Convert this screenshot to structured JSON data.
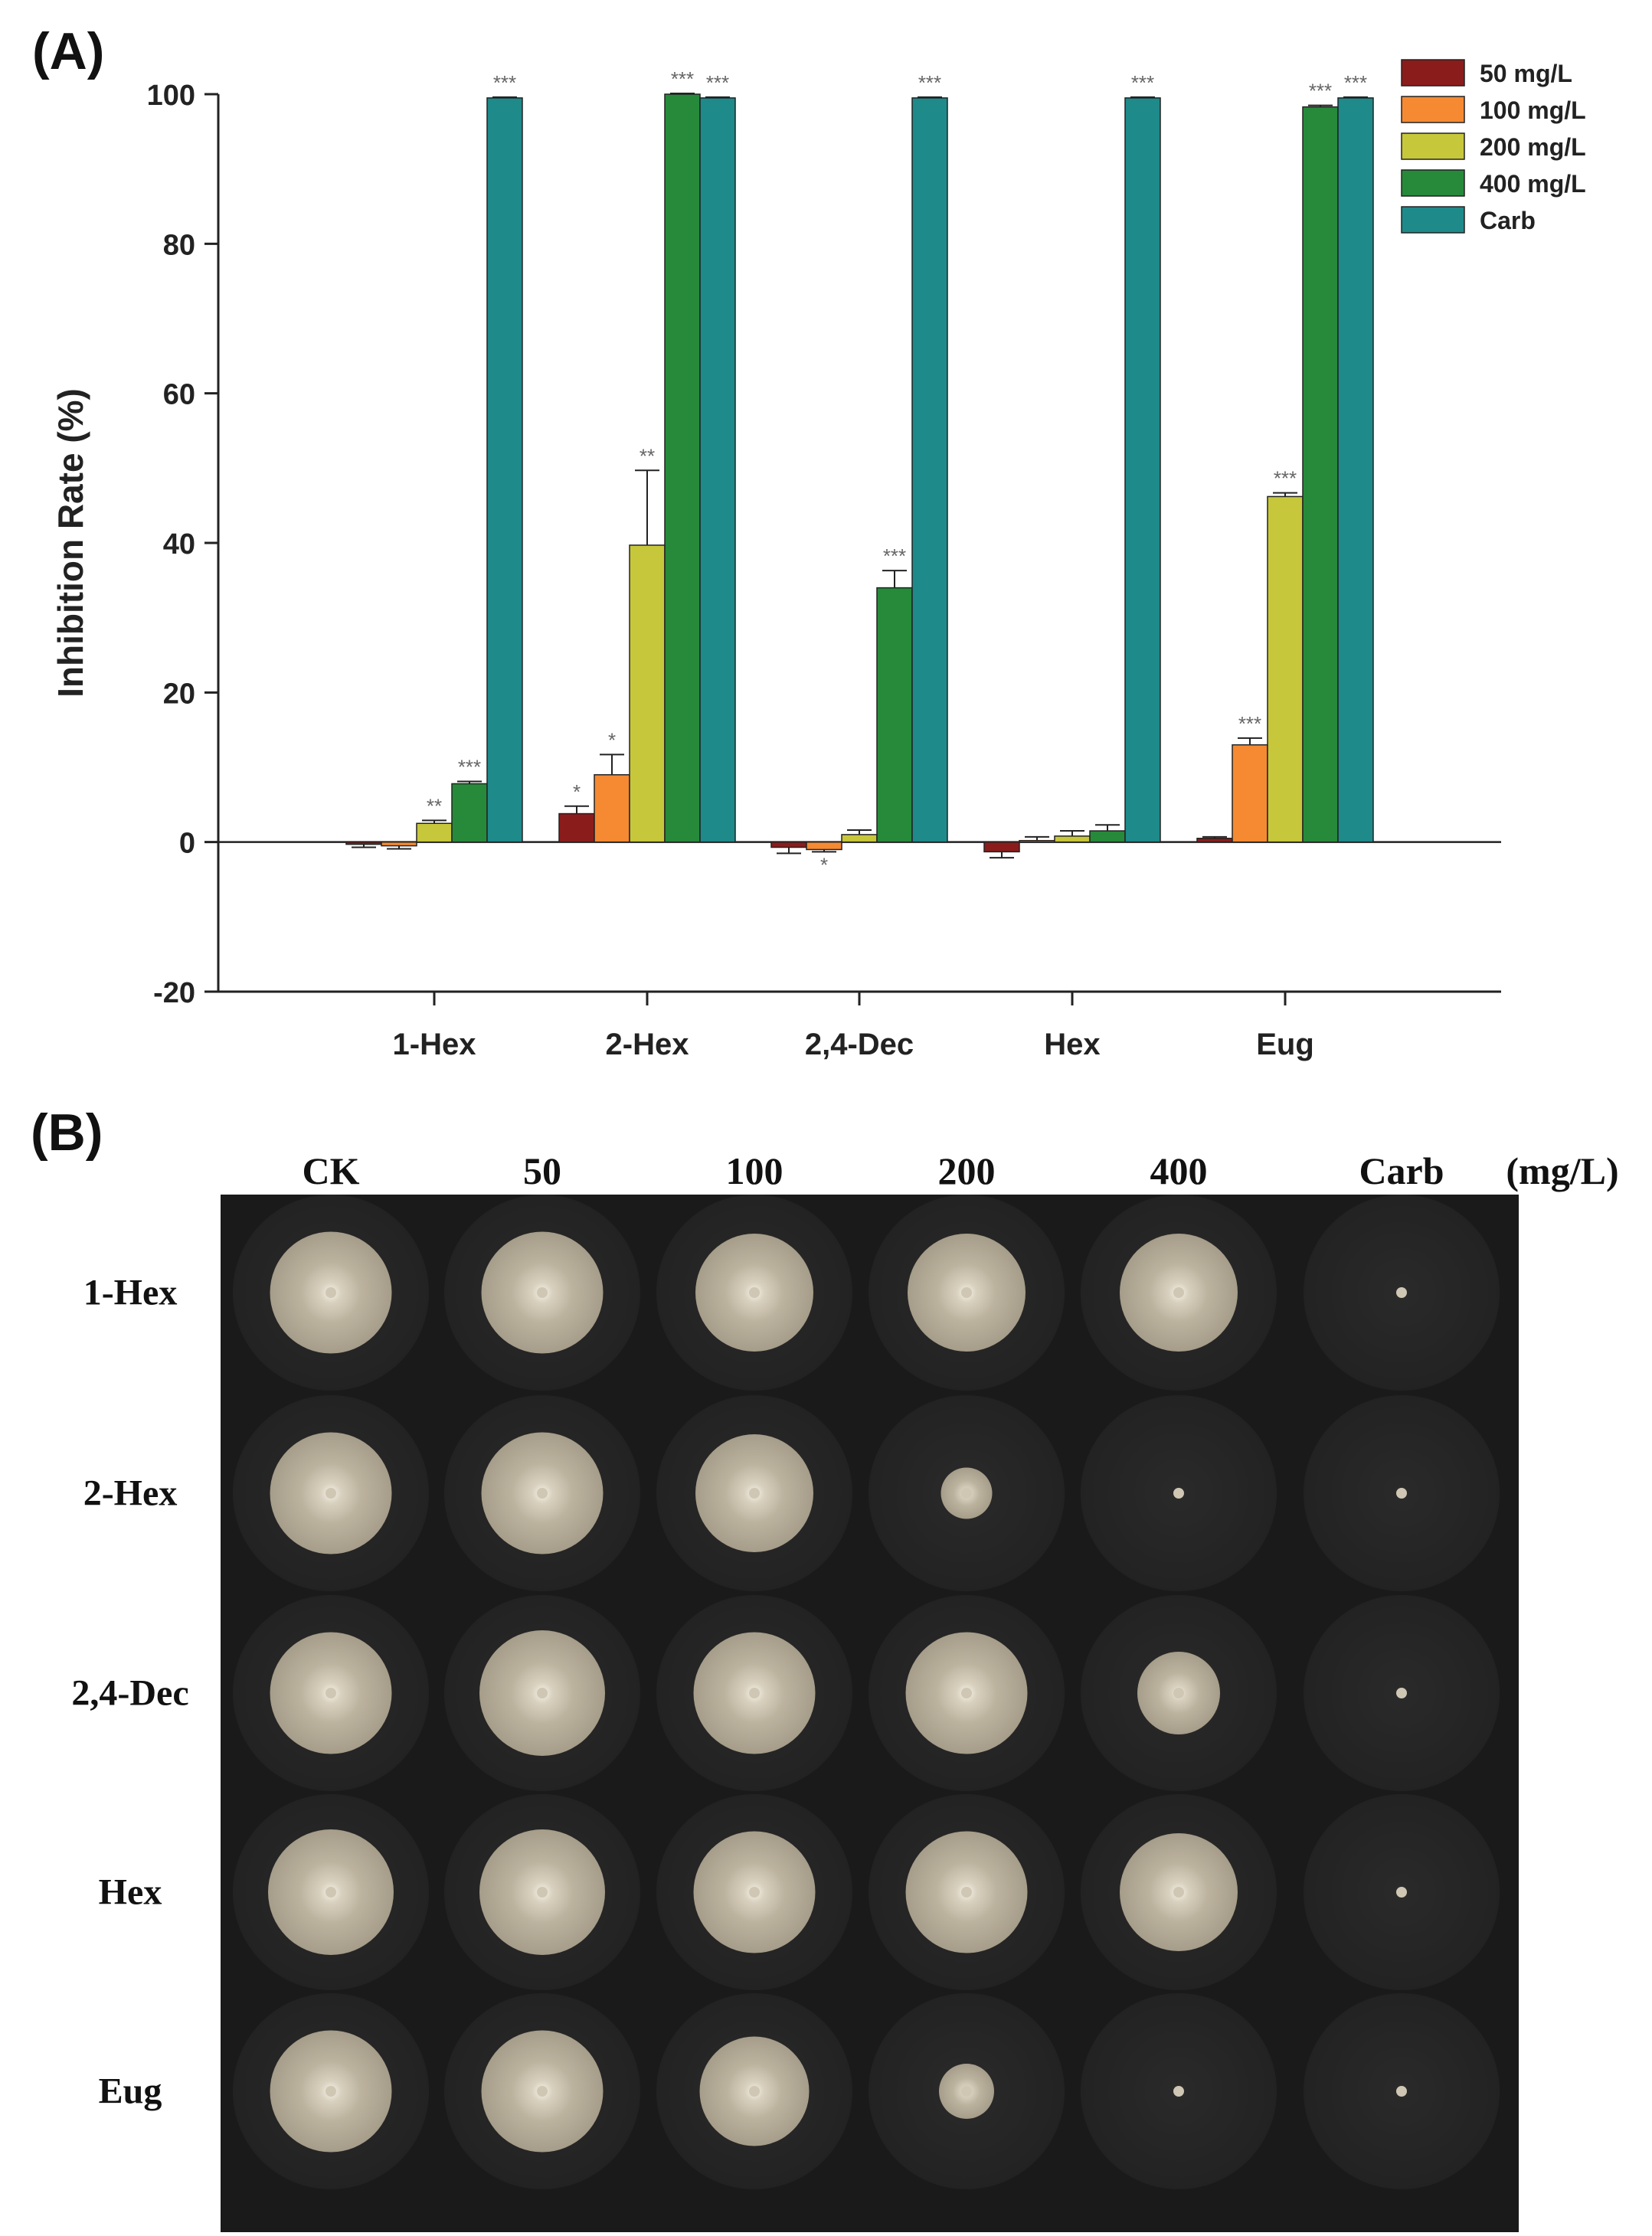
{
  "panel_a_label": "(A)",
  "panel_b_label": "(B)",
  "chart_data": {
    "type": "bar",
    "ylabel": "Inhibition Rate (%)",
    "xlabel": "",
    "ylim": [
      -20,
      100
    ],
    "yticks": [
      -20,
      0,
      20,
      40,
      60,
      80,
      100
    ],
    "categories": [
      "1-Hex",
      "2-Hex",
      "2,4-Dec",
      "Hex",
      "Eug"
    ],
    "legend_position": "top-right",
    "series": [
      {
        "name": "50 mg/L",
        "color": "#8b1c1c",
        "values": [
          -0.3,
          3.8,
          -0.7,
          -1.3,
          0.5
        ],
        "errors": [
          0.4,
          1.0,
          0.8,
          0.8,
          0.2
        ],
        "sig": [
          "",
          "*",
          "",
          "",
          ""
        ]
      },
      {
        "name": "100 mg/L",
        "color": "#f58a33",
        "values": [
          -0.5,
          9.0,
          -1.0,
          0.2,
          13.0
        ],
        "errors": [
          0.4,
          2.7,
          0.3,
          0.5,
          0.9
        ],
        "sig": [
          "",
          "*",
          "*",
          "",
          "***"
        ]
      },
      {
        "name": "200 mg/L",
        "color": "#c7c73c",
        "values": [
          2.5,
          39.7,
          1.0,
          0.8,
          46.2
        ],
        "errors": [
          0.4,
          10.0,
          0.6,
          0.7,
          0.5
        ],
        "sig": [
          "**",
          "**",
          "",
          "",
          "***"
        ]
      },
      {
        "name": "400 mg/L",
        "color": "#278a3b",
        "values": [
          7.8,
          100.0,
          34.0,
          1.5,
          98.3
        ],
        "errors": [
          0.3,
          0.1,
          2.3,
          0.8,
          0.2
        ],
        "sig": [
          "***",
          "***",
          "***",
          "",
          "***"
        ]
      },
      {
        "name": "Carb",
        "color": "#1e8a8a",
        "values": [
          99.5,
          99.5,
          99.5,
          99.5,
          99.5
        ],
        "errors": [
          0.1,
          0.1,
          0.1,
          0.1,
          0.1
        ],
        "sig": [
          "***",
          "***",
          "***",
          "***",
          "***"
        ]
      }
    ]
  },
  "plates": {
    "column_labels": [
      "CK",
      "50",
      "100",
      "200",
      "400",
      "Carb"
    ],
    "unit_label": "(mg/L)",
    "rows": [
      {
        "label": "1-Hex",
        "colony_diameters": [
          0.62,
          0.62,
          0.6,
          0.6,
          0.6,
          0.0
        ]
      },
      {
        "label": "2-Hex",
        "colony_diameters": [
          0.62,
          0.62,
          0.6,
          0.26,
          0.0,
          0.0
        ]
      },
      {
        "label": "2,4-Dec",
        "colony_diameters": [
          0.62,
          0.64,
          0.62,
          0.62,
          0.42,
          0.0
        ]
      },
      {
        "label": "Hex",
        "colony_diameters": [
          0.64,
          0.64,
          0.62,
          0.62,
          0.6,
          0.0
        ]
      },
      {
        "label": "Eug",
        "colony_diameters": [
          0.62,
          0.62,
          0.56,
          0.28,
          0.0,
          0.0
        ]
      }
    ]
  }
}
